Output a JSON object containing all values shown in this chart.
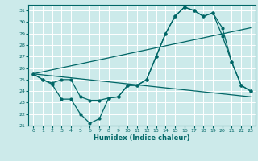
{
  "title": "",
  "xlabel": "Humidex (Indice chaleur)",
  "bg_color": "#cceaea",
  "grid_color": "#ffffff",
  "line_color": "#006666",
  "xlim": [
    -0.5,
    23.5
  ],
  "ylim": [
    21,
    31.5
  ],
  "yticks": [
    21,
    22,
    23,
    24,
    25,
    26,
    27,
    28,
    29,
    30,
    31
  ],
  "xticks": [
    0,
    1,
    2,
    3,
    4,
    5,
    6,
    7,
    8,
    9,
    10,
    11,
    12,
    13,
    14,
    15,
    16,
    17,
    18,
    19,
    20,
    21,
    22,
    23
  ],
  "line1_x": [
    0,
    1,
    2,
    3,
    4,
    5,
    6,
    7,
    8,
    9,
    10,
    11,
    12,
    13,
    14,
    15,
    16,
    17,
    18,
    19,
    20,
    21,
    22,
    23
  ],
  "line1_y": [
    25.5,
    25.0,
    24.7,
    25.0,
    25.0,
    23.5,
    23.2,
    23.2,
    23.4,
    23.5,
    24.5,
    24.5,
    25.0,
    27.0,
    29.0,
    30.5,
    31.3,
    31.0,
    30.5,
    30.8,
    29.5,
    26.5,
    24.5,
    24.0
  ],
  "line2_x": [
    0,
    1,
    2,
    3,
    4,
    5,
    6,
    7,
    8,
    9,
    10,
    11,
    12,
    13,
    14,
    15,
    16,
    17,
    18,
    19,
    20,
    21,
    22,
    23
  ],
  "line2_y": [
    25.5,
    25.0,
    24.6,
    23.3,
    23.3,
    22.0,
    21.2,
    21.6,
    23.4,
    23.5,
    24.5,
    24.5,
    25.0,
    27.0,
    29.0,
    30.5,
    31.3,
    31.0,
    30.5,
    30.8,
    28.8,
    26.5,
    24.5,
    24.0
  ],
  "line3_x": [
    0,
    23
  ],
  "line3_y": [
    25.5,
    23.5
  ],
  "line4_x": [
    0,
    23
  ],
  "line4_y": [
    25.5,
    29.5
  ]
}
